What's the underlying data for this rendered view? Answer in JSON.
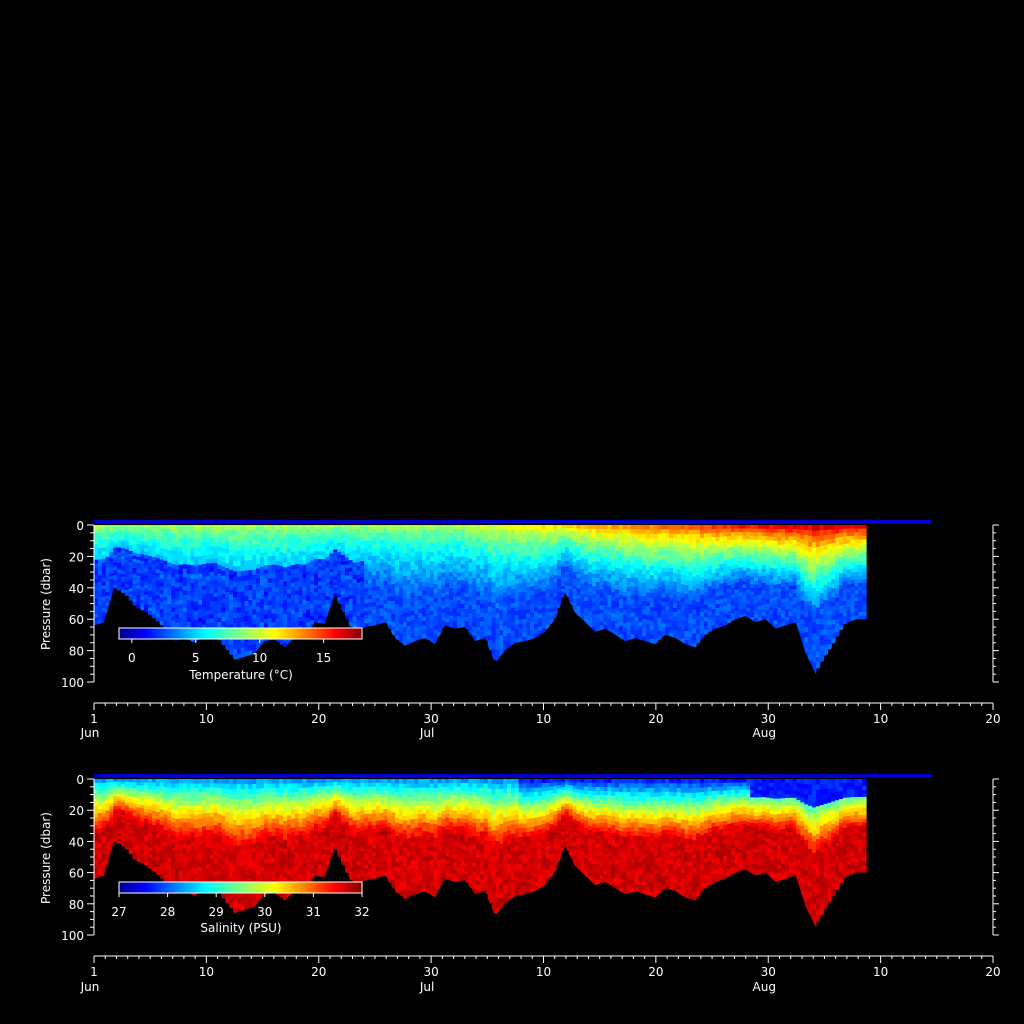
{
  "chart_data": [
    {
      "type": "heatmap",
      "title": "",
      "xlabel": "",
      "ylabel": "Pressure (dbar)",
      "y_ticks": [
        0,
        20,
        40,
        60,
        80,
        100
      ],
      "ylim": [
        100,
        0
      ],
      "x_ticks": [
        {
          "label": "1",
          "sub": "Jun"
        },
        {
          "label": "10",
          "sub": ""
        },
        {
          "label": "20",
          "sub": ""
        },
        {
          "label": "30",
          "sub": "Jul"
        },
        {
          "label": "10",
          "sub": ""
        },
        {
          "label": "20",
          "sub": ""
        },
        {
          "label": "30",
          "sub": "Aug"
        },
        {
          "label": "10",
          "sub": ""
        },
        {
          "label": "20",
          "sub": ""
        }
      ],
      "xlim": [
        "Jun 1",
        "Aug 20"
      ],
      "colorbar": {
        "label": "Temperature (°C)",
        "ticks": [
          "0",
          "5",
          "10",
          "15"
        ],
        "range": [
          -1,
          18
        ]
      },
      "field": "temperature",
      "surface_value": 10,
      "summer_surface_value": 17,
      "deep_value": 1,
      "bottom_depth_dbar": [
        64,
        62,
        40,
        44,
        52,
        55,
        60,
        66,
        74,
        72,
        75,
        71,
        70,
        78,
        86,
        84,
        82,
        74,
        73,
        78,
        72,
        73,
        62,
        63,
        45,
        58,
        70,
        65,
        64,
        62,
        72,
        77,
        74,
        72,
        76,
        64,
        66,
        65,
        74,
        72,
        88,
        80,
        75,
        74,
        72,
        68,
        60,
        43,
        56,
        62,
        68,
        66,
        70,
        74,
        72,
        74,
        76,
        70,
        72,
        76,
        78,
        70,
        66,
        64,
        60,
        58,
        62,
        60,
        66,
        64,
        62,
        82,
        95,
        84,
        74,
        63,
        60,
        60
      ]
    },
    {
      "type": "heatmap",
      "title": "",
      "xlabel": "",
      "ylabel": "Pressure (dbar)",
      "y_ticks": [
        0,
        20,
        40,
        60,
        80,
        100
      ],
      "ylim": [
        100,
        0
      ],
      "x_ticks": [
        {
          "label": "1",
          "sub": "Jun"
        },
        {
          "label": "10",
          "sub": ""
        },
        {
          "label": "20",
          "sub": ""
        },
        {
          "label": "30",
          "sub": "Jul"
        },
        {
          "label": "10",
          "sub": ""
        },
        {
          "label": "20",
          "sub": ""
        },
        {
          "label": "30",
          "sub": "Aug"
        },
        {
          "label": "10",
          "sub": ""
        },
        {
          "label": "20",
          "sub": ""
        }
      ],
      "xlim": [
        "Jun 1",
        "Aug 20"
      ],
      "colorbar": {
        "label": "Salinity (PSU)",
        "ticks": [
          "27",
          "28",
          "29",
          "30",
          "31",
          "32"
        ],
        "range": [
          27,
          32
        ]
      },
      "field": "salinity",
      "surface_value": 27.8,
      "deep_value": 31.8,
      "bottom_depth_dbar": [
        64,
        62,
        40,
        44,
        52,
        55,
        60,
        66,
        74,
        72,
        75,
        71,
        70,
        78,
        86,
        84,
        82,
        74,
        73,
        78,
        72,
        73,
        62,
        63,
        45,
        58,
        70,
        65,
        64,
        62,
        72,
        77,
        74,
        72,
        76,
        64,
        66,
        65,
        74,
        72,
        88,
        80,
        75,
        74,
        72,
        68,
        60,
        43,
        56,
        62,
        68,
        66,
        70,
        74,
        72,
        74,
        76,
        70,
        72,
        76,
        78,
        70,
        66,
        64,
        60,
        58,
        62,
        60,
        66,
        64,
        62,
        82,
        95,
        84,
        74,
        63,
        60,
        60
      ]
    }
  ],
  "colors": {
    "background": "#000000",
    "axis": "#ffffff",
    "surface_line": "#0000cc"
  }
}
